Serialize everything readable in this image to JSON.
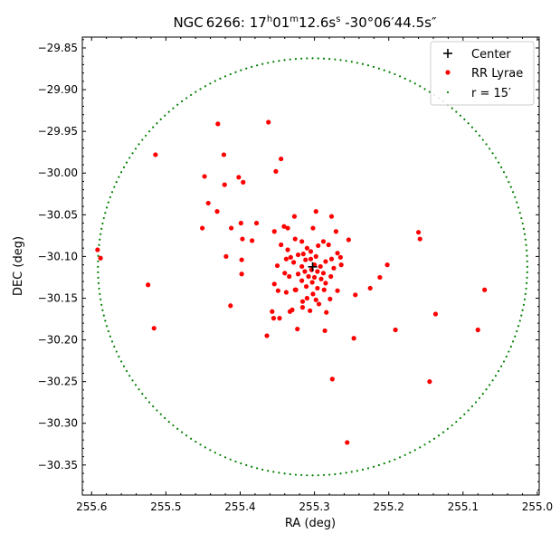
{
  "chart_data": {
    "type": "scatter",
    "title": "NGC 6266: 17h01m12.6ss -30°06′44.5s″",
    "title_parts": {
      "prefix": "NGC 6266: 17",
      "h": "h",
      "mid1": "01",
      "m": "m",
      "mid2": "12.6s",
      "s": "s",
      "suffix": " -30°06′44.5s″"
    },
    "xlabel": "RA (deg)",
    "ylabel": "DEC (deg)",
    "xlim": [
      255.6125,
      254.9975
    ],
    "ylim": [
      -30.386,
      -29.837
    ],
    "x_inverted": true,
    "grid": false,
    "legend_placement": "top-right",
    "x_ticks": [
      {
        "value": 255.6,
        "label": "255.6"
      },
      {
        "value": 255.5,
        "label": "255.5"
      },
      {
        "value": 255.4,
        "label": "255.4"
      },
      {
        "value": 255.3,
        "label": "255.3"
      },
      {
        "value": 255.2,
        "label": "255.2"
      },
      {
        "value": 255.1,
        "label": "255.1"
      },
      {
        "value": 255.0,
        "label": "255.0"
      }
    ],
    "y_ticks": [
      {
        "value": -29.85,
        "label": "−29.85"
      },
      {
        "value": -29.9,
        "label": "−29.90"
      },
      {
        "value": -29.95,
        "label": "−29.95"
      },
      {
        "value": -30.0,
        "label": "−30.00"
      },
      {
        "value": -30.05,
        "label": "−30.05"
      },
      {
        "value": -30.1,
        "label": "−30.10"
      },
      {
        "value": -30.15,
        "label": "−30.15"
      },
      {
        "value": -30.2,
        "label": "−30.20"
      },
      {
        "value": -30.25,
        "label": "−30.25"
      },
      {
        "value": -30.3,
        "label": "−30.30"
      },
      {
        "value": -30.35,
        "label": "−30.35"
      }
    ],
    "legend": [
      {
        "name": "Center",
        "marker": "plus",
        "color": "#000000"
      },
      {
        "name": "RR Lyrae",
        "marker": "dot",
        "color": "#ff0000"
      },
      {
        "name": "r = 15′",
        "marker": "small-dot",
        "color": "#008000"
      }
    ],
    "series": [
      {
        "name": "Center",
        "color": "#000000",
        "marker": "plus",
        "points": [
          [
            255.3025,
            -30.1124
          ]
        ]
      },
      {
        "name": "RR Lyrae",
        "color": "#ff0000",
        "marker": "dot",
        "points": [
          [
            255.362,
            -29.939
          ],
          [
            255.43,
            -29.941
          ],
          [
            255.514,
            -29.978
          ],
          [
            255.422,
            -29.978
          ],
          [
            255.345,
            -29.983
          ],
          [
            255.352,
            -29.998
          ],
          [
            255.448,
            -30.004
          ],
          [
            255.402,
            -30.005
          ],
          [
            255.421,
            -30.014
          ],
          [
            255.396,
            -30.011
          ],
          [
            255.443,
            -30.036
          ],
          [
            255.431,
            -30.046
          ],
          [
            255.298,
            -30.046
          ],
          [
            255.327,
            -30.052
          ],
          [
            255.277,
            -30.052
          ],
          [
            255.378,
            -30.06
          ],
          [
            255.399,
            -30.06
          ],
          [
            255.412,
            -30.066
          ],
          [
            255.451,
            -30.066
          ],
          [
            255.341,
            -30.064
          ],
          [
            255.336,
            -30.066
          ],
          [
            255.354,
            -30.07
          ],
          [
            255.302,
            -30.066
          ],
          [
            255.271,
            -30.07
          ],
          [
            255.16,
            -30.071
          ],
          [
            255.158,
            -30.079
          ],
          [
            255.254,
            -30.08
          ],
          [
            255.326,
            -30.079
          ],
          [
            255.384,
            -30.081
          ],
          [
            255.397,
            -30.079
          ],
          [
            255.317,
            -30.082
          ],
          [
            255.288,
            -30.082
          ],
          [
            255.281,
            -30.086
          ],
          [
            255.345,
            -30.086
          ],
          [
            255.336,
            -30.092
          ],
          [
            255.31,
            -30.09
          ],
          [
            255.295,
            -30.087
          ],
          [
            255.269,
            -30.096
          ],
          [
            255.322,
            -30.098
          ],
          [
            255.338,
            -30.103
          ],
          [
            255.277,
            -30.103
          ],
          [
            255.265,
            -30.101
          ],
          [
            255.305,
            -30.094
          ],
          [
            255.298,
            -30.1
          ],
          [
            255.312,
            -30.104
          ],
          [
            255.285,
            -30.106
          ],
          [
            255.328,
            -30.107
          ],
          [
            255.35,
            -30.111
          ],
          [
            255.317,
            -30.112
          ],
          [
            255.3,
            -30.11
          ],
          [
            255.292,
            -30.112
          ],
          [
            255.274,
            -30.114
          ],
          [
            255.264,
            -30.11
          ],
          [
            255.304,
            -30.116
          ],
          [
            255.313,
            -30.118
          ],
          [
            255.296,
            -30.118
          ],
          [
            255.288,
            -30.12
          ],
          [
            255.322,
            -30.121
          ],
          [
            255.334,
            -30.124
          ],
          [
            255.278,
            -30.124
          ],
          [
            255.308,
            -30.124
          ],
          [
            255.3,
            -30.125
          ],
          [
            255.291,
            -30.127
          ],
          [
            255.317,
            -30.129
          ],
          [
            255.303,
            -30.131
          ],
          [
            255.285,
            -30.132
          ],
          [
            255.311,
            -30.136
          ],
          [
            255.296,
            -30.138
          ],
          [
            255.326,
            -30.14
          ],
          [
            255.269,
            -30.141
          ],
          [
            255.338,
            -30.143
          ],
          [
            255.354,
            -30.133
          ],
          [
            255.349,
            -30.141
          ],
          [
            255.31,
            -30.15
          ],
          [
            255.298,
            -30.152
          ],
          [
            255.279,
            -30.151
          ],
          [
            255.302,
            -30.145
          ],
          [
            255.294,
            -30.157
          ],
          [
            255.316,
            -30.154
          ],
          [
            255.33,
            -30.164
          ],
          [
            255.333,
            -30.166
          ],
          [
            255.306,
            -30.165
          ],
          [
            255.316,
            -30.161
          ],
          [
            255.325,
            -30.14
          ],
          [
            255.287,
            -30.14
          ],
          [
            255.284,
            -30.167
          ],
          [
            255.355,
            -30.174
          ],
          [
            255.347,
            -30.174
          ],
          [
            255.398,
            -30.121
          ],
          [
            255.398,
            -30.104
          ],
          [
            255.419,
            -30.1
          ],
          [
            255.202,
            -30.11
          ],
          [
            255.212,
            -30.125
          ],
          [
            255.225,
            -30.138
          ],
          [
            255.245,
            -30.146
          ],
          [
            255.191,
            -30.188
          ],
          [
            255.286,
            -30.189
          ],
          [
            255.323,
            -30.187
          ],
          [
            255.247,
            -30.198
          ],
          [
            255.364,
            -30.195
          ],
          [
            255.413,
            -30.159
          ],
          [
            255.357,
            -30.166
          ],
          [
            255.137,
            -30.169
          ],
          [
            255.08,
            -30.188
          ],
          [
            255.071,
            -30.14
          ],
          [
            255.145,
            -30.25
          ],
          [
            255.276,
            -30.247
          ],
          [
            255.256,
            -30.323
          ],
          [
            255.592,
            -30.092
          ],
          [
            255.588,
            -30.102
          ],
          [
            255.524,
            -30.134
          ],
          [
            255.516,
            -30.186
          ],
          [
            255.332,
            -30.101
          ],
          [
            255.315,
            -30.097
          ],
          [
            255.34,
            -30.12
          ],
          [
            255.305,
            -30.103
          ]
        ]
      },
      {
        "name": "r = 15′",
        "color": "#008000",
        "marker": "small-dot",
        "circle": {
          "center": [
            255.3025,
            -30.1124
          ],
          "radius_deg": 0.25,
          "n_points": 240
        }
      }
    ]
  }
}
